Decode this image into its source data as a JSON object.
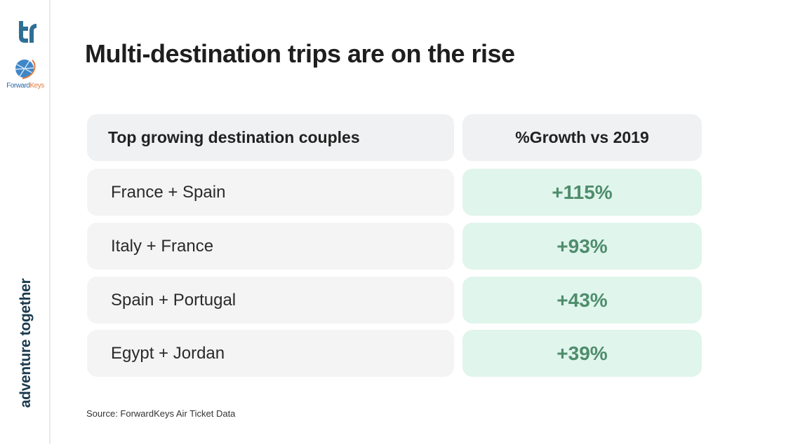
{
  "title": "Multi-destination trips are on the rise",
  "sidebar": {
    "logo_tr": "tr",
    "logo_forwardkeys": {
      "part1": "Forward",
      "part2": "Keys"
    },
    "tagline": "adventure together"
  },
  "table": {
    "headers": [
      "Top growing destination couples",
      "%Growth vs 2019"
    ],
    "rows": [
      {
        "couple": "France + Spain",
        "growth": "+115%"
      },
      {
        "couple": "Italy + France",
        "growth": "+93%"
      },
      {
        "couple": "Spain + Portugal",
        "growth": "+43%"
      },
      {
        "couple": "Egypt + Jordan",
        "growth": "+39%"
      }
    ]
  },
  "source": "Source: ForwardKeys Air Ticket Data",
  "colors": {
    "growth_text": "#4e8d6c",
    "growth_bg": "#e0f5ec",
    "brand_dark": "#1b3a4f",
    "tr_blue": "#2f6f95"
  }
}
